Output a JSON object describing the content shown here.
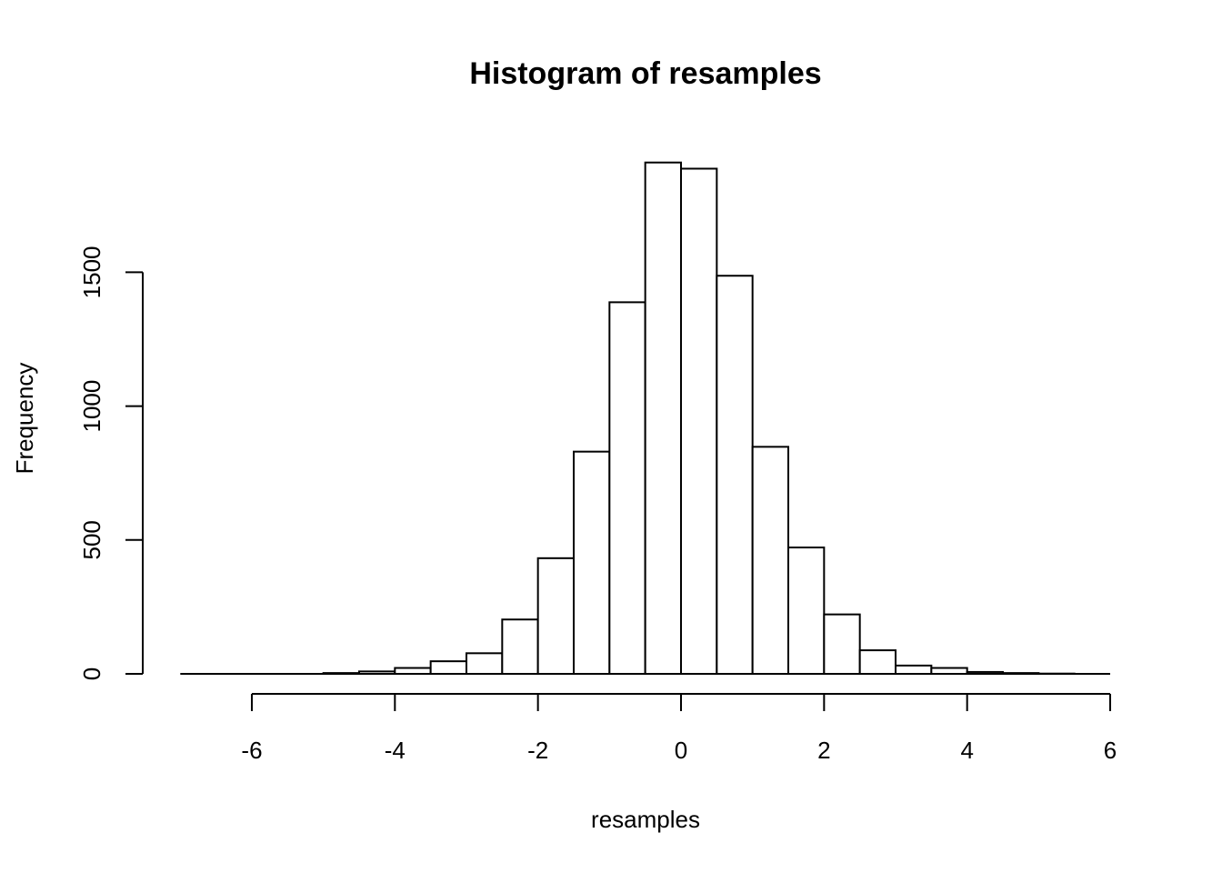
{
  "chart_data": {
    "type": "bar",
    "title": "Histogram of resamples",
    "xlabel": "resamples",
    "ylabel": "Frequency",
    "bin_width": 0.5,
    "bins": [
      {
        "start": -7.0,
        "end": -6.5,
        "count": 0
      },
      {
        "start": -6.5,
        "end": -6.0,
        "count": 0
      },
      {
        "start": -6.0,
        "end": -5.5,
        "count": 0
      },
      {
        "start": -5.5,
        "end": -5.0,
        "count": 0
      },
      {
        "start": -5.0,
        "end": -4.5,
        "count": 3
      },
      {
        "start": -4.5,
        "end": -4.0,
        "count": 9
      },
      {
        "start": -4.0,
        "end": -3.5,
        "count": 22
      },
      {
        "start": -3.5,
        "end": -3.0,
        "count": 47
      },
      {
        "start": -3.0,
        "end": -2.5,
        "count": 77
      },
      {
        "start": -2.5,
        "end": -2.0,
        "count": 203
      },
      {
        "start": -2.0,
        "end": -1.5,
        "count": 432
      },
      {
        "start": -1.5,
        "end": -1.0,
        "count": 830
      },
      {
        "start": -1.0,
        "end": -0.5,
        "count": 1388
      },
      {
        "start": -0.5,
        "end": 0.0,
        "count": 1910
      },
      {
        "start": 0.0,
        "end": 0.5,
        "count": 1887
      },
      {
        "start": 0.5,
        "end": 1.0,
        "count": 1487
      },
      {
        "start": 1.0,
        "end": 1.5,
        "count": 848
      },
      {
        "start": 1.5,
        "end": 2.0,
        "count": 472
      },
      {
        "start": 2.0,
        "end": 2.5,
        "count": 222
      },
      {
        "start": 2.5,
        "end": 3.0,
        "count": 88
      },
      {
        "start": 3.0,
        "end": 3.5,
        "count": 31
      },
      {
        "start": 3.5,
        "end": 4.0,
        "count": 22
      },
      {
        "start": 4.0,
        "end": 4.5,
        "count": 7
      },
      {
        "start": 4.5,
        "end": 5.0,
        "count": 3
      },
      {
        "start": 5.0,
        "end": 5.5,
        "count": 1
      },
      {
        "start": 5.5,
        "end": 6.0,
        "count": 0
      }
    ],
    "x_ticks": [
      -6,
      -4,
      -2,
      0,
      2,
      4,
      6
    ],
    "x_tick_labels": [
      "-6",
      "-4",
      "-2",
      "0",
      "2",
      "4",
      "6"
    ],
    "y_ticks": [
      0,
      500,
      1000,
      1500
    ],
    "y_tick_labels": [
      "0",
      "500",
      "1000",
      "1500"
    ],
    "xlim": [
      -7,
      6
    ],
    "ylim": [
      0,
      1910
    ],
    "grid": false,
    "legend": "none",
    "colors": {
      "bar_fill": "#ffffff",
      "bar_stroke": "#000000",
      "background": "#ffffff"
    }
  }
}
